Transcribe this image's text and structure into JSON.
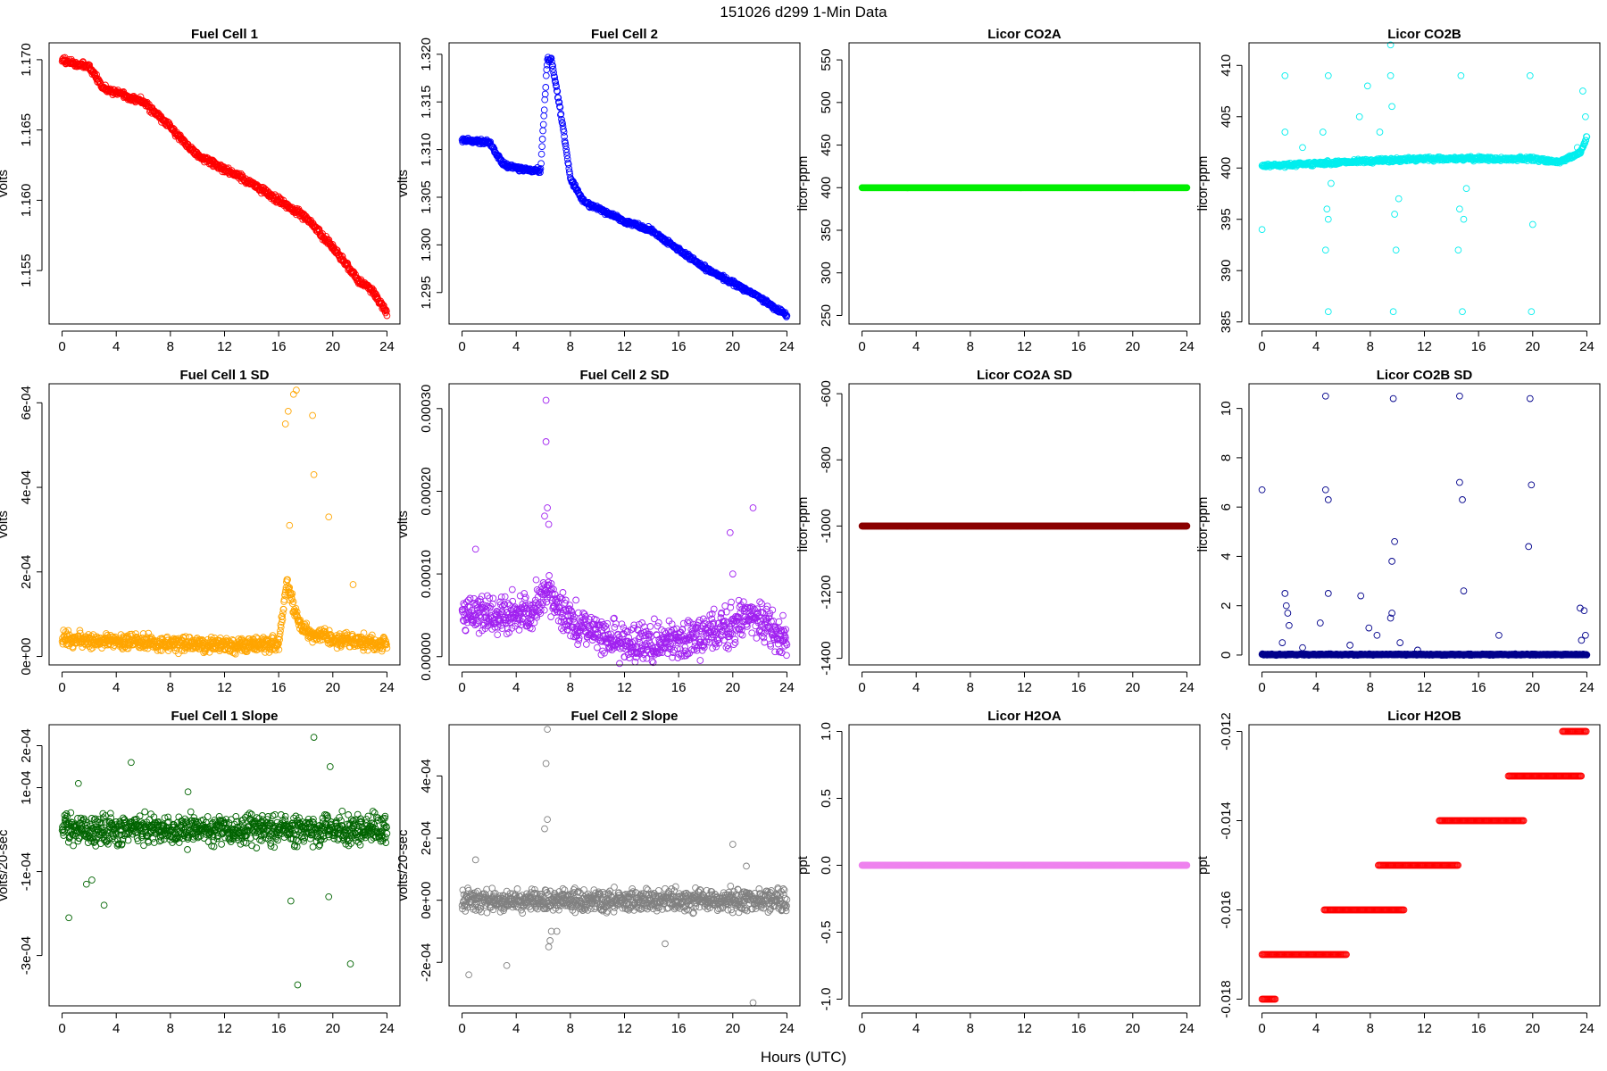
{
  "figure": {
    "title": "151026   d299   1-Min Data",
    "xlabel": "Hours (UTC)"
  },
  "chart_data": [
    {
      "type": "scatter",
      "title": "Fuel Cell 1",
      "ylabel": "volts",
      "color": "#ff0000",
      "xlim": [
        -0.96,
        24.96
      ],
      "ylim": [
        1.1512,
        1.1712
      ],
      "xticks": [
        0,
        4,
        8,
        12,
        16,
        20,
        24
      ],
      "xtick_labels": [
        "0",
        "4",
        "8",
        "12",
        "16",
        "20",
        "24"
      ],
      "yticks": [
        1.155,
        1.16,
        1.165,
        1.17
      ],
      "ytick_labels": [
        "1.155",
        "1.160",
        "1.165",
        "1.170"
      ],
      "trend": [
        [
          0,
          1.17
        ],
        [
          1,
          1.1697
        ],
        [
          2,
          1.1695
        ],
        [
          3,
          1.168
        ],
        [
          4,
          1.1677
        ],
        [
          6,
          1.167
        ],
        [
          8,
          1.1652
        ],
        [
          10,
          1.1632
        ],
        [
          12,
          1.1622
        ],
        [
          14,
          1.1612
        ],
        [
          16,
          1.16
        ],
        [
          18,
          1.1588
        ],
        [
          20,
          1.1566
        ],
        [
          22,
          1.1542
        ],
        [
          23,
          1.1535
        ],
        [
          24,
          1.152
        ]
      ],
      "noise": 0.0002,
      "n": 700
    },
    {
      "type": "scatter",
      "title": "Fuel Cell 2",
      "ylabel": "volts",
      "color": "#0000ff",
      "xlim": [
        -0.96,
        24.96
      ],
      "ylim": [
        1.2917,
        1.3212
      ],
      "xticks": [
        0,
        4,
        8,
        12,
        16,
        20,
        24
      ],
      "xtick_labels": [
        "0",
        "4",
        "8",
        "12",
        "16",
        "20",
        "24"
      ],
      "yticks": [
        1.295,
        1.3,
        1.305,
        1.31,
        1.315,
        1.32
      ],
      "ytick_labels": [
        "1.295",
        "1.300",
        "1.305",
        "1.310",
        "1.315",
        "1.320"
      ],
      "trend": [
        [
          0,
          1.311
        ],
        [
          2,
          1.3108
        ],
        [
          3,
          1.3085
        ],
        [
          4,
          1.308
        ],
        [
          5.8,
          1.3078
        ],
        [
          6.3,
          1.3195
        ],
        [
          6.6,
          1.3195
        ],
        [
          7.5,
          1.312
        ],
        [
          8,
          1.307
        ],
        [
          9,
          1.3045
        ],
        [
          12,
          1.3025
        ],
        [
          14,
          1.3015
        ],
        [
          16,
          1.2995
        ],
        [
          18,
          1.2975
        ],
        [
          20,
          1.296
        ],
        [
          22,
          1.2945
        ],
        [
          24,
          1.2925
        ]
      ],
      "noise": 0.0002,
      "n": 700
    },
    {
      "type": "scatter",
      "title": "Licor CO2A",
      "ylabel": "licor-ppm",
      "color": "#00ee00",
      "xlim": [
        -0.96,
        24.96
      ],
      "ylim": [
        240,
        570
      ],
      "xticks": [
        0,
        4,
        8,
        12,
        16,
        20,
        24
      ],
      "xtick_labels": [
        "0",
        "4",
        "8",
        "12",
        "16",
        "20",
        "24"
      ],
      "yticks": [
        250,
        300,
        350,
        400,
        450,
        500,
        550
      ],
      "ytick_labels": [
        "250",
        "300",
        "350",
        "400",
        "450",
        "500",
        "550"
      ],
      "trend": [
        [
          0,
          400
        ],
        [
          24,
          400
        ]
      ],
      "noise": 0,
      "n": 700
    },
    {
      "type": "scatter",
      "title": "Licor CO2B",
      "ylabel": "licor-ppm",
      "color": "#00eeee",
      "xlim": [
        -0.96,
        24.96
      ],
      "ylim": [
        384.8,
        412.2
      ],
      "xticks": [
        0,
        4,
        8,
        12,
        16,
        20,
        24
      ],
      "xtick_labels": [
        "0",
        "4",
        "8",
        "12",
        "16",
        "20",
        "24"
      ],
      "yticks": [
        385,
        390,
        395,
        400,
        405,
        410
      ],
      "ytick_labels": [
        "385",
        "390",
        "395",
        "400",
        "405",
        "410"
      ],
      "trend": [
        [
          0,
          400.2
        ],
        [
          10,
          400.8
        ],
        [
          12,
          400.9
        ],
        [
          20,
          400.9
        ],
        [
          22,
          400.6
        ],
        [
          23.5,
          401.5
        ],
        [
          24,
          403
        ]
      ],
      "noise": 0.15,
      "n": 650,
      "outliers": [
        [
          0,
          394
        ],
        [
          1.7,
          409
        ],
        [
          1.7,
          403.5
        ],
        [
          3,
          402
        ],
        [
          4.5,
          403.5
        ],
        [
          4.7,
          392
        ],
        [
          4.8,
          396
        ],
        [
          4.9,
          409
        ],
        [
          4.9,
          395
        ],
        [
          4.9,
          386
        ],
        [
          5.1,
          398.5
        ],
        [
          7.2,
          405
        ],
        [
          7.8,
          408
        ],
        [
          8.7,
          403.5
        ],
        [
          9.5,
          409
        ],
        [
          9.5,
          412
        ],
        [
          9.6,
          406
        ],
        [
          9.7,
          386
        ],
        [
          9.8,
          395.5
        ],
        [
          9.9,
          392
        ],
        [
          10.1,
          397
        ],
        [
          14.5,
          392
        ],
        [
          14.6,
          396
        ],
        [
          14.7,
          409
        ],
        [
          14.8,
          386
        ],
        [
          14.9,
          395
        ],
        [
          15.1,
          398
        ],
        [
          19.8,
          409
        ],
        [
          19.9,
          386
        ],
        [
          20.0,
          394.5
        ],
        [
          23.3,
          402
        ],
        [
          23.7,
          407.5
        ],
        [
          23.9,
          405
        ]
      ]
    },
    {
      "type": "scatter",
      "title": "Fuel Cell 1 SD",
      "ylabel": "volts",
      "color": "#ffa500",
      "xlim": [
        -0.96,
        24.96
      ],
      "ylim": [
        -2e-05,
        0.000645
      ],
      "xticks": [
        0,
        4,
        8,
        12,
        16,
        20,
        24
      ],
      "xtick_labels": [
        "0",
        "4",
        "8",
        "12",
        "16",
        "20",
        "24"
      ],
      "yticks": [
        0,
        0.0002,
        0.0004,
        0.0006
      ],
      "ytick_labels": [
        "0e+00",
        "2e-04",
        "4e-04",
        "6e-04"
      ],
      "trend": [
        [
          0,
          4e-05
        ],
        [
          12,
          2.5e-05
        ],
        [
          16,
          3e-05
        ],
        [
          16.6,
          0.00018
        ],
        [
          17.2,
          0.0001
        ],
        [
          18,
          6e-05
        ],
        [
          20,
          4e-05
        ],
        [
          24,
          3e-05
        ]
      ],
      "noise": 1.5e-05,
      "n": 900,
      "outliers": [
        [
          16.5,
          0.00055
        ],
        [
          16.7,
          0.00058
        ],
        [
          17.1,
          0.00062
        ],
        [
          17.3,
          0.00063
        ],
        [
          18.5,
          0.00057
        ],
        [
          18.6,
          0.00043
        ],
        [
          19.7,
          0.00033
        ],
        [
          16.8,
          0.00031
        ],
        [
          21.5,
          0.00017
        ]
      ]
    },
    {
      "type": "scatter",
      "title": "Fuel Cell 2 SD",
      "ylabel": "volts",
      "color": "#a020f0",
      "xlim": [
        -0.96,
        24.96
      ],
      "ylim": [
        -1e-05,
        0.00033
      ],
      "xticks": [
        0,
        4,
        8,
        12,
        16,
        20,
        24
      ],
      "xtick_labels": [
        "0",
        "4",
        "8",
        "12",
        "16",
        "20",
        "24"
      ],
      "yticks": [
        0,
        0.0001,
        0.0002,
        0.0003
      ],
      "ytick_labels": [
        "0.00000",
        "0.00010",
        "0.00020",
        "0.00030"
      ],
      "trend": [
        [
          0,
          5e-05
        ],
        [
          5,
          5e-05
        ],
        [
          6.3,
          8e-05
        ],
        [
          8,
          4e-05
        ],
        [
          12,
          1.5e-05
        ],
        [
          16,
          2e-05
        ],
        [
          19,
          3e-05
        ],
        [
          21,
          5e-05
        ],
        [
          24,
          2e-05
        ]
      ],
      "noise": 2e-05,
      "n": 900,
      "outliers": [
        [
          6.2,
          0.00031
        ],
        [
          6.2,
          0.00026
        ],
        [
          6.3,
          0.00018
        ],
        [
          6.1,
          0.00017
        ],
        [
          6.4,
          0.00016
        ],
        [
          19.8,
          0.00015
        ],
        [
          21.5,
          0.00018
        ],
        [
          20,
          0.0001
        ],
        [
          1,
          0.00013
        ]
      ]
    },
    {
      "type": "scatter",
      "title": "Licor CO2A SD",
      "ylabel": "licor-ppm",
      "color": "#8b0000",
      "xlim": [
        -0.96,
        24.96
      ],
      "ylim": [
        -1420,
        -570
      ],
      "xticks": [
        0,
        4,
        8,
        12,
        16,
        20,
        24
      ],
      "xtick_labels": [
        "0",
        "4",
        "8",
        "12",
        "16",
        "20",
        "24"
      ],
      "yticks": [
        -1400,
        -1200,
        -1000,
        -800,
        -600
      ],
      "ytick_labels": [
        "-1400",
        "-1200",
        "-1000",
        "-800",
        "-600"
      ],
      "trend": [
        [
          0,
          -1000
        ],
        [
          24,
          -1000
        ]
      ],
      "noise": 0,
      "n": 700
    },
    {
      "type": "scatter",
      "title": "Licor CO2B SD",
      "ylabel": "licor-ppm",
      "color": "#00008b",
      "xlim": [
        -0.96,
        24.96
      ],
      "ylim": [
        -0.4,
        11.0
      ],
      "xticks": [
        0,
        4,
        8,
        12,
        16,
        20,
        24
      ],
      "xtick_labels": [
        "0",
        "4",
        "8",
        "12",
        "16",
        "20",
        "24"
      ],
      "yticks": [
        0,
        2,
        4,
        6,
        8,
        10
      ],
      "ytick_labels": [
        "0",
        "2",
        "4",
        "6",
        "8",
        "10"
      ],
      "trend": [
        [
          0,
          0.02
        ],
        [
          24,
          0.02
        ]
      ],
      "noise": 0.02,
      "n": 700,
      "outliers": [
        [
          0,
          6.7
        ],
        [
          4.7,
          10.5
        ],
        [
          4.7,
          6.7
        ],
        [
          4.9,
          6.3
        ],
        [
          4.9,
          2.5
        ],
        [
          9.7,
          10.4
        ],
        [
          9.6,
          3.8
        ],
        [
          9.8,
          4.6
        ],
        [
          9.6,
          1.7
        ],
        [
          14.6,
          10.5
        ],
        [
          14.6,
          7.0
        ],
        [
          14.8,
          6.3
        ],
        [
          14.9,
          2.6
        ],
        [
          19.8,
          10.4
        ],
        [
          19.9,
          6.9
        ],
        [
          19.7,
          4.4
        ],
        [
          1.7,
          2.5
        ],
        [
          1.8,
          2.0
        ],
        [
          1.9,
          1.7
        ],
        [
          2.0,
          1.2
        ],
        [
          4.3,
          1.3
        ],
        [
          7.3,
          2.4
        ],
        [
          7.9,
          1.1
        ],
        [
          8.5,
          0.8
        ],
        [
          9.5,
          1.5
        ],
        [
          17.5,
          0.8
        ],
        [
          23.5,
          1.9
        ],
        [
          23.8,
          1.8
        ],
        [
          23.9,
          0.8
        ],
        [
          1.5,
          0.5
        ],
        [
          3.0,
          0.3
        ],
        [
          6.5,
          0.4
        ],
        [
          10.2,
          0.5
        ],
        [
          11.5,
          0.2
        ],
        [
          23.6,
          0.6
        ]
      ]
    },
    {
      "type": "scatter",
      "title": "Fuel Cell 1 Slope",
      "ylabel": "volts/20-sec",
      "color": "#006400",
      "xlim": [
        -0.96,
        24.96
      ],
      "ylim": [
        -0.00042,
        0.00025
      ],
      "xticks": [
        0,
        4,
        8,
        12,
        16,
        20,
        24
      ],
      "xtick_labels": [
        "0",
        "4",
        "8",
        "12",
        "16",
        "20",
        "24"
      ],
      "yticks": [
        -0.0003,
        -0.0001,
        0.0001,
        0.0002
      ],
      "ytick_labels": [
        "-3e-04",
        "-1e-04",
        "1e-04",
        "2e-04"
      ],
      "trend": [
        [
          0,
          0.0
        ],
        [
          24,
          0.0
        ]
      ],
      "noise": 3e-05,
      "n": 900,
      "outliers": [
        [
          0.5,
          -0.00021
        ],
        [
          1.2,
          0.00011
        ],
        [
          3.1,
          -0.00018
        ],
        [
          5.1,
          0.00016
        ],
        [
          16.9,
          -0.00017
        ],
        [
          17.4,
          -0.00037
        ],
        [
          18.6,
          0.00022
        ],
        [
          19.8,
          0.00015
        ],
        [
          21.3,
          -0.00032
        ],
        [
          19.7,
          -0.00016
        ],
        [
          1.8,
          -0.00013
        ],
        [
          9.3,
          9e-05
        ],
        [
          2.2,
          -0.00012
        ]
      ]
    },
    {
      "type": "scatter",
      "title": "Fuel Cell 2 Slope",
      "ylabel": "volts/20-sec",
      "color": "#808080",
      "xlim": [
        -0.96,
        24.96
      ],
      "ylim": [
        -0.00034,
        0.000565
      ],
      "xticks": [
        0,
        4,
        8,
        12,
        16,
        20,
        24
      ],
      "xtick_labels": [
        "0",
        "4",
        "8",
        "12",
        "16",
        "20",
        "24"
      ],
      "yticks": [
        -0.0002,
        0,
        0.0002,
        0.0004
      ],
      "ytick_labels": [
        "-2e-04",
        "0e+00",
        "2e-04",
        "4e-04"
      ],
      "trend": [
        [
          0,
          0.0
        ],
        [
          24,
          0.0
        ]
      ],
      "noise": 3e-05,
      "n": 900,
      "outliers": [
        [
          6.3,
          0.00055
        ],
        [
          6.2,
          0.00044
        ],
        [
          6.3,
          0.00026
        ],
        [
          6.1,
          0.00023
        ],
        [
          6.4,
          -0.00015
        ],
        [
          6.5,
          -0.00013
        ],
        [
          6.6,
          -0.0001
        ],
        [
          0.5,
          -0.00024
        ],
        [
          3.3,
          -0.00021
        ],
        [
          15.0,
          -0.00014
        ],
        [
          21.5,
          -0.00033
        ],
        [
          20.0,
          0.00018
        ],
        [
          1.0,
          0.00013
        ],
        [
          21.0,
          0.00011
        ],
        [
          7.0,
          -0.0001
        ]
      ]
    },
    {
      "type": "scatter",
      "title": "Licor H2OA",
      "ylabel": "ppt",
      "color": "#ee82ee",
      "xlim": [
        -0.96,
        24.96
      ],
      "ylim": [
        -1.05,
        1.05
      ],
      "xticks": [
        0,
        4,
        8,
        12,
        16,
        20,
        24
      ],
      "xtick_labels": [
        "0",
        "4",
        "8",
        "12",
        "16",
        "20",
        "24"
      ],
      "yticks": [
        -1,
        -0.5,
        0,
        0.5,
        1
      ],
      "ytick_labels": [
        "-1.0",
        "-0.5",
        "0.0",
        "0.5",
        "1.0"
      ],
      "trend": [
        [
          0,
          0
        ],
        [
          24,
          0
        ]
      ],
      "noise": 0,
      "n": 700
    },
    {
      "type": "scatter",
      "title": "Licor H2OB",
      "ylabel": "ppt",
      "color": "#ff0000",
      "xlim": [
        -0.96,
        24.96
      ],
      "ylim": [
        -0.01815,
        -0.01185
      ],
      "xticks": [
        0,
        4,
        8,
        12,
        16,
        20,
        24
      ],
      "xtick_labels": [
        "0",
        "4",
        "8",
        "12",
        "16",
        "20",
        "24"
      ],
      "yticks": [
        -0.018,
        -0.016,
        -0.014,
        -0.012
      ],
      "ytick_labels": [
        "-0.018",
        "-0.016",
        "-0.014",
        "-0.012"
      ],
      "segments": [
        [
          0,
          1,
          -0.018
        ],
        [
          0,
          6.3,
          -0.017
        ],
        [
          4.6,
          10.5,
          -0.016
        ],
        [
          8.6,
          14.5,
          -0.015
        ],
        [
          13.1,
          19.4,
          -0.014
        ],
        [
          18.2,
          23.6,
          -0.013
        ],
        [
          22.2,
          24,
          -0.012
        ]
      ]
    }
  ]
}
